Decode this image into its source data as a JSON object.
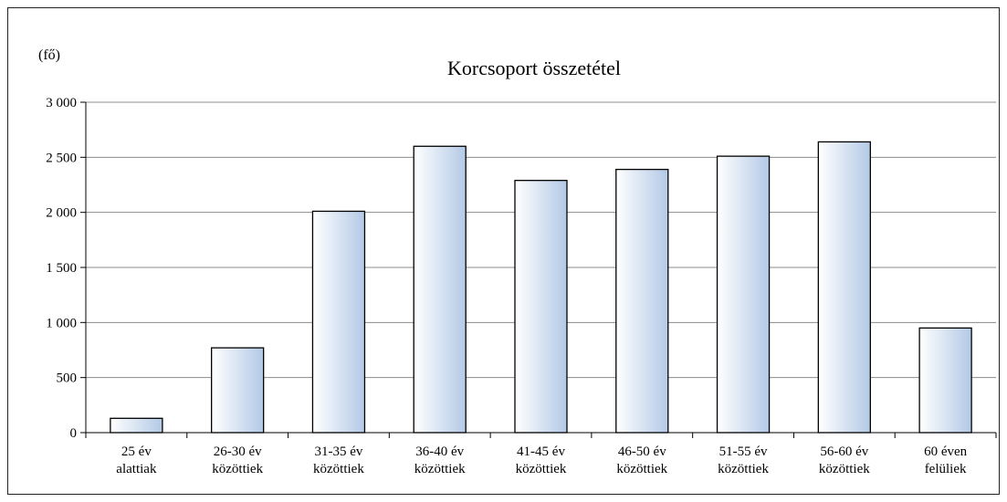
{
  "chart_data": {
    "type": "bar",
    "title": "Korcsoport összetétel",
    "unit_label": "(fő)",
    "categories": [
      [
        "25 év",
        "alattiak"
      ],
      [
        "26-30 év",
        "közöttiek"
      ],
      [
        "31-35 év",
        "közöttiek"
      ],
      [
        "36-40 év",
        "közöttiek"
      ],
      [
        "41-45 év",
        "közöttiek"
      ],
      [
        "46-50 év",
        "közöttiek"
      ],
      [
        "51-55 év",
        "közöttiek"
      ],
      [
        "56-60 év",
        "közöttiek"
      ],
      [
        "60 éven",
        "felüliek"
      ]
    ],
    "values": [
      130,
      770,
      2010,
      2600,
      2290,
      2390,
      2510,
      2640,
      950
    ],
    "ylim": [
      0,
      3000
    ],
    "yticks": [
      0,
      500,
      1000,
      1500,
      2000,
      2500,
      3000
    ],
    "ytick_labels": [
      "0",
      "500",
      "1 000",
      "1 500",
      "2 000",
      "2 500",
      "3 000"
    ],
    "grid": true,
    "legend": "none",
    "bar_gradient": [
      "#ffffff",
      "#b3c9e6"
    ]
  }
}
